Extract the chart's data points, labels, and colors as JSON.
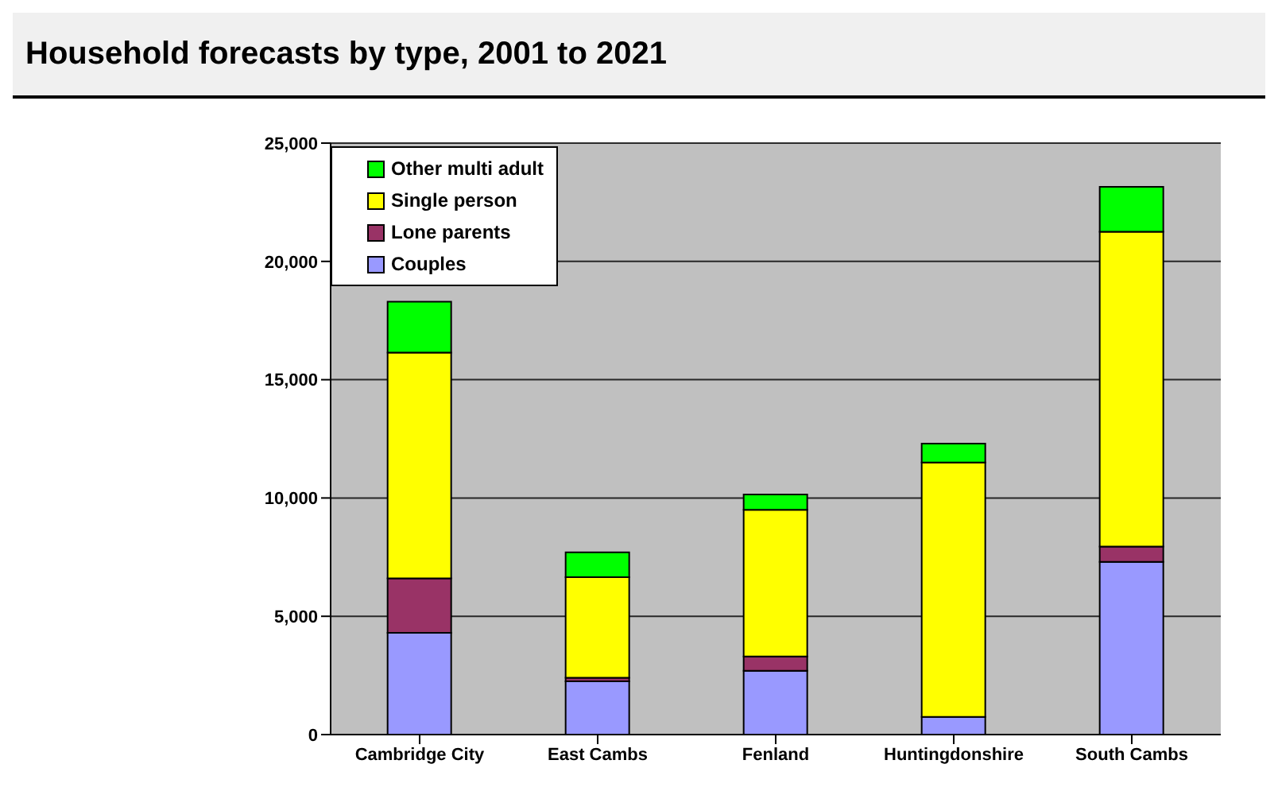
{
  "chart_data": {
    "type": "bar",
    "title": "Household forecasts by type, 2001 to 2021",
    "categories": [
      "Cambridge City",
      "East Cambs",
      "Fenland",
      "Huntingdonshire",
      "South Cambs"
    ],
    "stacked": true,
    "series": [
      {
        "name": "Couples",
        "color": "#9999ff",
        "values": [
          4300,
          2250,
          2700,
          750,
          7300
        ]
      },
      {
        "name": "Lone parents",
        "color": "#993366",
        "values": [
          2300,
          150,
          600,
          0,
          650
        ]
      },
      {
        "name": "Single person",
        "color": "#ffff00",
        "values": [
          9550,
          4250,
          6200,
          10750,
          13300
        ]
      },
      {
        "name": "Other multi adult",
        "color": "#00ff00",
        "values": [
          2150,
          1050,
          650,
          800,
          1900
        ]
      }
    ],
    "ylim": [
      0,
      25000
    ],
    "yticks": [
      {
        "value": 0,
        "label": "0"
      },
      {
        "value": 5000,
        "label": "5,000"
      },
      {
        "value": 10000,
        "label": "10,000"
      },
      {
        "value": 15000,
        "label": "15,000"
      },
      {
        "value": 20000,
        "label": "20,000"
      },
      {
        "value": 25000,
        "label": "25,000"
      }
    ],
    "grid": "y",
    "legend": "top left"
  }
}
